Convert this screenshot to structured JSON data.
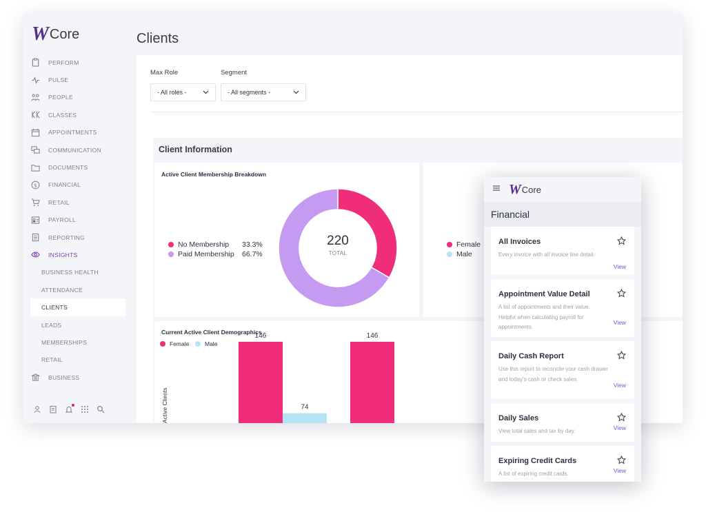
{
  "app": {
    "logo_mark": "W",
    "logo_text": "Core",
    "page_title": "Clients",
    "brand_color": "#5a2d91",
    "accent_pink": "#ef2d7a",
    "accent_purple": "#c49bf0",
    "accent_blue": "#b3e3f5"
  },
  "sidebar": {
    "items": [
      {
        "label": "PERFORM",
        "icon": "clipboard-icon"
      },
      {
        "label": "PULSE",
        "icon": "pulse-icon"
      },
      {
        "label": "PEOPLE",
        "icon": "people-icon"
      },
      {
        "label": "CLASSES",
        "icon": "classes-icon"
      },
      {
        "label": "APPOINTMENTS",
        "icon": "calendar-icon"
      },
      {
        "label": "COMMUNICATION",
        "icon": "chat-icon"
      },
      {
        "label": "DOCUMENTS",
        "icon": "folder-icon"
      },
      {
        "label": "FINANCIAL",
        "icon": "dollar-icon"
      },
      {
        "label": "RETAIL",
        "icon": "cart-icon"
      },
      {
        "label": "PAYROLL",
        "icon": "payroll-icon"
      },
      {
        "label": "REPORTING",
        "icon": "report-icon"
      },
      {
        "label": "INSIGHTS",
        "icon": "eye-icon"
      }
    ],
    "sub_items": [
      {
        "label": "BUSINESS HEALTH"
      },
      {
        "label": "ATTENDANCE"
      },
      {
        "label": "CLIENTS"
      },
      {
        "label": "LEADS"
      },
      {
        "label": "MEMBERSHIPS"
      },
      {
        "label": "RETAIL"
      }
    ],
    "business_label": "BUSINESS"
  },
  "filters": {
    "role_label": "Max Role",
    "role_value": "- All roles -",
    "segment_label": "Segment",
    "segment_value": "- All segments -"
  },
  "client_info": {
    "title": "Client Information",
    "membership_card_title": "Active Client Membership Breakdown",
    "demographics_title": "Current Active Client Demographics",
    "right_legend": {
      "female": "Female",
      "male": "Male"
    }
  },
  "chart_data": [
    {
      "type": "pie",
      "title": "Active Client Membership Breakdown",
      "center_value": "220",
      "center_label": "TOTAL",
      "slices": [
        {
          "label": "No Membership",
          "value": 33.3,
          "display": "33.3%",
          "color": "#ef2d7a"
        },
        {
          "label": "Paid Membership",
          "value": 66.7,
          "display": "66.7%",
          "color": "#c49bf0"
        }
      ]
    },
    {
      "type": "bar",
      "title": "Current Active Client Demographics",
      "ylabel": "Active Clients",
      "legend": [
        {
          "name": "Female",
          "color": "#ef2d7a"
        },
        {
          "name": "Male",
          "color": "#b3e3f5"
        }
      ],
      "bars": [
        {
          "series": "Female",
          "value": 146,
          "label": "146",
          "color": "#ef2d7a"
        },
        {
          "series": "Male",
          "value": 74,
          "label": "74",
          "color": "#b3e3f5"
        },
        {
          "series": "Female",
          "value": 146,
          "label": "146",
          "color": "#ef2d7a"
        }
      ]
    }
  ],
  "mobile": {
    "logo_mark": "W",
    "logo_text": "Core",
    "section_title": "Financial",
    "reports": [
      {
        "title": "All Invoices",
        "description": "Every invoice with all invoice line detail.",
        "action": "View"
      },
      {
        "title": "Appointment Value Detail",
        "description": "A list of appointments and their value. Helpful when calculating payroll for appointments.",
        "action": "View"
      },
      {
        "title": "Daily Cash Report",
        "description": "Use this report to reconcile your cash drawer and today's cash or check sales.",
        "action": "View"
      },
      {
        "title": "Daily Sales",
        "description": "View total sales and tax by day.",
        "action": "View"
      },
      {
        "title": "Expiring Credit Cards",
        "description": "A list of expiring credit cards.",
        "action": "View"
      }
    ]
  }
}
